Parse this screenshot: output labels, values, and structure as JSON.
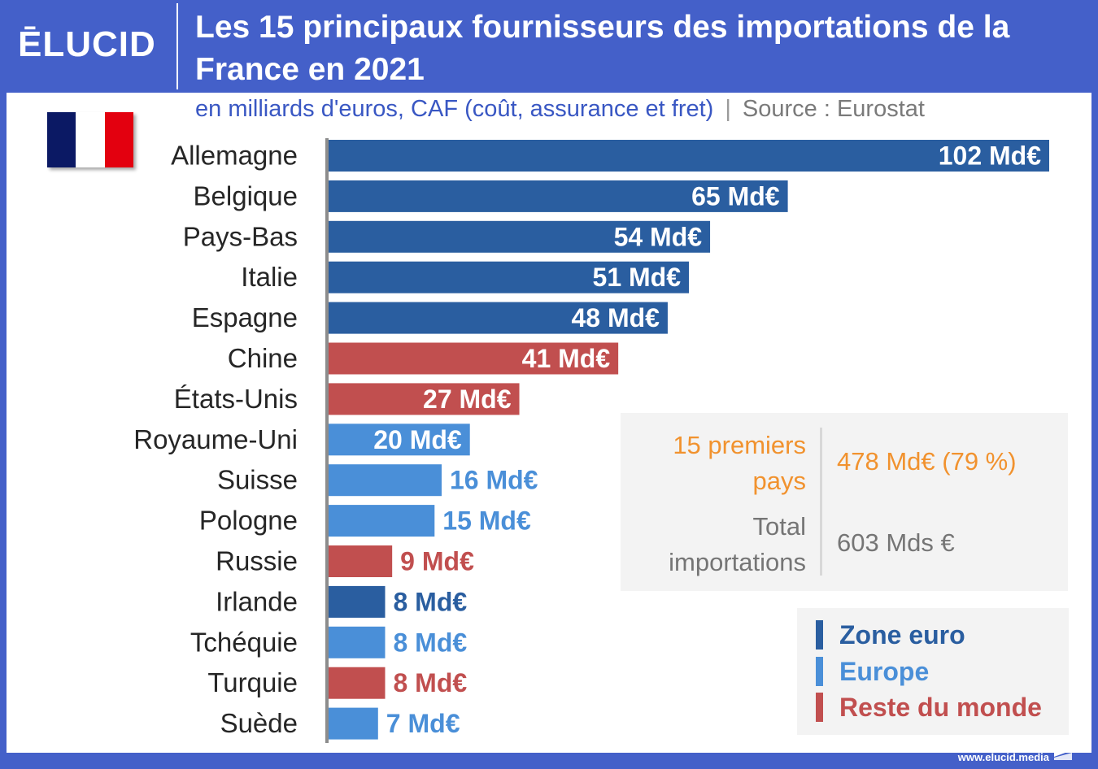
{
  "header": {
    "logo": "ĒLUCID",
    "title": "Les 15 principaux fournisseurs des importations de la France en 2021"
  },
  "subtitle": "en milliards d'euros, CAF (coût, assurance et fret)",
  "separator": "|",
  "source": "Source : Eurostat",
  "flag_icon": "france-flag-icon",
  "colors": {
    "zone_euro": "#2a5ea0",
    "europe": "#4a8fd8",
    "reste_du_monde": "#c14f4f",
    "header": "#4460c9",
    "highlight": "#f1922e"
  },
  "chart_data": {
    "type": "bar",
    "orientation": "horizontal",
    "categories": [
      "Allemagne",
      "Belgique",
      "Pays-Bas",
      "Italie",
      "Espagne",
      "Chine",
      "États-Unis",
      "Royaume-Uni",
      "Suisse",
      "Pologne",
      "Russie",
      "Irlande",
      "Tchéquie",
      "Turquie",
      "Suède"
    ],
    "values": [
      102,
      65,
      54,
      51,
      48,
      41,
      27,
      20,
      16,
      15,
      9,
      8,
      8,
      8,
      7
    ],
    "labels": [
      "102 Md€",
      "65 Md€",
      "54 Md€",
      "51 Md€",
      "48 Md€",
      "41 Md€",
      "27 Md€",
      "20 Md€",
      "16 Md€",
      "15 Md€",
      "9 Md€",
      "8 Md€",
      "8 Md€",
      "8 Md€",
      "7 Md€"
    ],
    "groups": [
      "zone_euro",
      "zone_euro",
      "zone_euro",
      "zone_euro",
      "zone_euro",
      "reste_du_monde",
      "reste_du_monde",
      "europe",
      "europe",
      "europe",
      "reste_du_monde",
      "zone_euro",
      "europe",
      "reste_du_monde",
      "europe"
    ],
    "unit": "Md€",
    "xlim": [
      0,
      102
    ],
    "grid": false,
    "legend_position": "bottom-right"
  },
  "summary": {
    "top15_label": "15 premiers pays",
    "top15_value": "478 Md€ (79 %)",
    "total_label": "Total importations",
    "total_value": "603 Mds €"
  },
  "legend": [
    {
      "key": "zone_euro",
      "label": "Zone euro"
    },
    {
      "key": "europe",
      "label": "Europe"
    },
    {
      "key": "reste_du_monde",
      "label": "Reste du monde"
    }
  ],
  "footer": {
    "url": "www.elucid.media",
    "icon": "elucid-corner-mark-icon"
  }
}
